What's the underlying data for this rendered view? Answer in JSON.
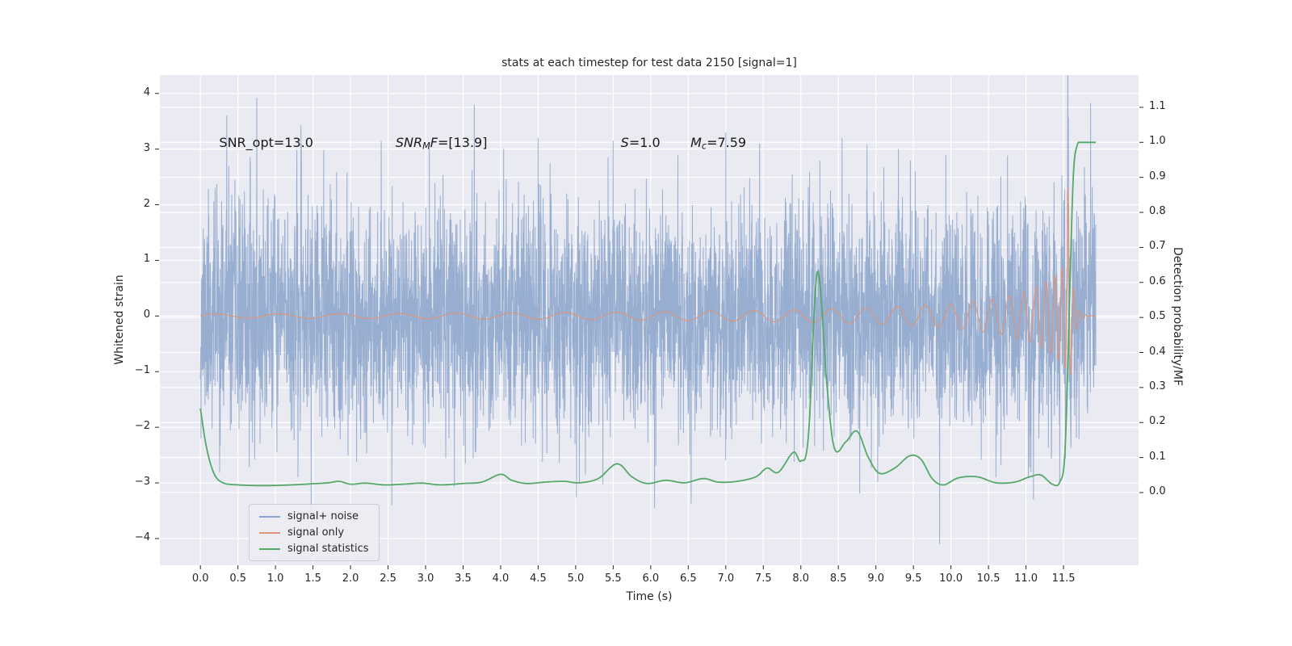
{
  "chart_data": {
    "type": "line",
    "title": "stats at each timestep for test data 2150 [signal=1]",
    "xlabel": "Time (s)",
    "ylabel_left": "Whitened strain",
    "ylabel_right": "Detection probability/MF",
    "xlim": [
      -0.54,
      12.5
    ],
    "ylim_left": [
      -4.48,
      4.33
    ],
    "ylim_right": [
      -0.2075,
      1.192
    ],
    "axes_bg": "#eaeaf2",
    "figure_bg": "#ffffff",
    "grid_color": "#ffffff",
    "tick_color": "#262626",
    "x_ticks": [
      {
        "v": 0.0,
        "label": "0.0"
      },
      {
        "v": 0.5,
        "label": "0.5"
      },
      {
        "v": 1.0,
        "label": "1.0"
      },
      {
        "v": 1.5,
        "label": "1.5"
      },
      {
        "v": 2.0,
        "label": "2.0"
      },
      {
        "v": 2.5,
        "label": "2.5"
      },
      {
        "v": 3.0,
        "label": "3.0"
      },
      {
        "v": 3.5,
        "label": "3.5"
      },
      {
        "v": 4.0,
        "label": "4.0"
      },
      {
        "v": 4.5,
        "label": "4.5"
      },
      {
        "v": 5.0,
        "label": "5.0"
      },
      {
        "v": 5.5,
        "label": "5.5"
      },
      {
        "v": 6.0,
        "label": "6.0"
      },
      {
        "v": 6.5,
        "label": "6.5"
      },
      {
        "v": 7.0,
        "label": "7.0"
      },
      {
        "v": 7.5,
        "label": "7.5"
      },
      {
        "v": 8.0,
        "label": "8.0"
      },
      {
        "v": 8.5,
        "label": "8.5"
      },
      {
        "v": 9.0,
        "label": "9.0"
      },
      {
        "v": 9.5,
        "label": "9.5"
      },
      {
        "v": 10.0,
        "label": "10.0"
      },
      {
        "v": 10.5,
        "label": "10.5"
      },
      {
        "v": 11.0,
        "label": "11.0"
      },
      {
        "v": 11.5,
        "label": "11.5"
      }
    ],
    "y_ticks_left": [
      {
        "v": -4,
        "label": "−4"
      },
      {
        "v": -3,
        "label": "−3"
      },
      {
        "v": -2,
        "label": "−2"
      },
      {
        "v": -1,
        "label": "−1"
      },
      {
        "v": 0,
        "label": "0"
      },
      {
        "v": 1,
        "label": "1"
      },
      {
        "v": 2,
        "label": "2"
      },
      {
        "v": 3,
        "label": "3"
      },
      {
        "v": 4,
        "label": "4"
      }
    ],
    "y_ticks_right": [
      {
        "v": 0.0,
        "label": "0.0"
      },
      {
        "v": 0.1,
        "label": "0.1"
      },
      {
        "v": 0.2,
        "label": "0.2"
      },
      {
        "v": 0.3,
        "label": "0.3"
      },
      {
        "v": 0.4,
        "label": "0.4"
      },
      {
        "v": 0.5,
        "label": "0.5"
      },
      {
        "v": 0.6,
        "label": "0.6"
      },
      {
        "v": 0.7,
        "label": "0.7"
      },
      {
        "v": 0.8,
        "label": "0.8"
      },
      {
        "v": 0.9,
        "label": "0.9"
      },
      {
        "v": 1.0,
        "label": "1.0"
      },
      {
        "v": 1.1,
        "label": "1.1"
      }
    ],
    "annotations": [
      {
        "x": 0.25,
        "y": 3.1,
        "segments": [
          {
            "t": "SNR_opt=13.0"
          }
        ]
      },
      {
        "x": 2.6,
        "y": 3.1,
        "segments": [
          {
            "t": "SNR",
            "i": 1
          },
          {
            "t": "M",
            "i": 1,
            "sub": 1
          },
          {
            "t": "F",
            "i": 1
          },
          {
            "t": "=[13.9]"
          }
        ]
      },
      {
        "x": 5.6,
        "y": 3.1,
        "segments": [
          {
            "t": "S",
            "i": 1
          },
          {
            "t": "=1.0"
          }
        ]
      },
      {
        "x": 6.53,
        "y": 3.1,
        "segments": [
          {
            "t": "M",
            "i": 1
          },
          {
            "t": "c",
            "i": 1,
            "sub": 1
          },
          {
            "t": "=7.59"
          }
        ]
      }
    ],
    "legend": {
      "items": [
        {
          "label": "signal+ noise",
          "series": "signal_plus_noise"
        },
        {
          "label": "signal only",
          "series": "signal_only"
        },
        {
          "label": "signal statistics",
          "series": "signal_statistics"
        }
      ]
    },
    "series": {
      "signal_plus_noise": {
        "color": "#8ba5cc",
        "opacity": 0.88,
        "seed": 11,
        "std": 1.0,
        "desc": "whitened gaussian noise plus injected chirp signal",
        "spikes": [
          [
            0.35,
            3.6
          ],
          [
            0.75,
            3.92
          ],
          [
            1.3,
            -2.9
          ],
          [
            2.55,
            -3.4
          ],
          [
            3.05,
            3.1
          ],
          [
            3.65,
            3.8
          ],
          [
            4.5,
            3.2
          ],
          [
            5.05,
            -3.0
          ],
          [
            5.5,
            3.15
          ],
          [
            6.05,
            -3.45
          ],
          [
            7.0,
            3.3
          ],
          [
            7.45,
            3.1
          ],
          [
            8.55,
            3.2
          ],
          [
            9.3,
            3.0
          ],
          [
            9.85,
            -4.1
          ],
          [
            10.6,
            -2.9
          ],
          [
            11.1,
            -3.3
          ]
        ]
      },
      "signal_only": {
        "color": "#dd9478",
        "opacity": 0.9,
        "n": 4800,
        "t_start": 0.0,
        "t_end": 11.93,
        "t_merge": 11.55,
        "amp_scale": 0.45,
        "amp_soft": 0.45,
        "freq_base": 0.8,
        "freq_scale": 4.5,
        "freq_soft": 0.35,
        "ring_amp": 2.7,
        "ring_tau": 0.05,
        "ring_freq": 13
      },
      "signal_statistics": {
        "color": "#55a868",
        "width": 1.8,
        "keypoints": [
          [
            0.0,
            0.24
          ],
          [
            0.08,
            0.13
          ],
          [
            0.18,
            0.055
          ],
          [
            0.3,
            0.028
          ],
          [
            0.5,
            0.022
          ],
          [
            0.8,
            0.02
          ],
          [
            1.1,
            0.021
          ],
          [
            1.4,
            0.024
          ],
          [
            1.7,
            0.028
          ],
          [
            1.85,
            0.032
          ],
          [
            2.0,
            0.024
          ],
          [
            2.2,
            0.027
          ],
          [
            2.45,
            0.022
          ],
          [
            2.7,
            0.024
          ],
          [
            2.95,
            0.027
          ],
          [
            3.2,
            0.022
          ],
          [
            3.5,
            0.026
          ],
          [
            3.75,
            0.03
          ],
          [
            4.0,
            0.052
          ],
          [
            4.15,
            0.035
          ],
          [
            4.35,
            0.026
          ],
          [
            4.6,
            0.03
          ],
          [
            4.85,
            0.032
          ],
          [
            5.05,
            0.028
          ],
          [
            5.3,
            0.04
          ],
          [
            5.55,
            0.082
          ],
          [
            5.75,
            0.045
          ],
          [
            5.95,
            0.026
          ],
          [
            6.2,
            0.035
          ],
          [
            6.45,
            0.028
          ],
          [
            6.7,
            0.04
          ],
          [
            6.9,
            0.03
          ],
          [
            7.15,
            0.032
          ],
          [
            7.4,
            0.045
          ],
          [
            7.55,
            0.07
          ],
          [
            7.7,
            0.058
          ],
          [
            7.9,
            0.115
          ],
          [
            8.0,
            0.09
          ],
          [
            8.1,
            0.16
          ],
          [
            8.22,
            0.63
          ],
          [
            8.35,
            0.3
          ],
          [
            8.45,
            0.125
          ],
          [
            8.6,
            0.145
          ],
          [
            8.75,
            0.175
          ],
          [
            8.9,
            0.1
          ],
          [
            9.05,
            0.055
          ],
          [
            9.25,
            0.07
          ],
          [
            9.45,
            0.105
          ],
          [
            9.6,
            0.095
          ],
          [
            9.75,
            0.04
          ],
          [
            9.9,
            0.022
          ],
          [
            10.1,
            0.042
          ],
          [
            10.35,
            0.045
          ],
          [
            10.6,
            0.028
          ],
          [
            10.85,
            0.03
          ],
          [
            11.05,
            0.045
          ],
          [
            11.2,
            0.05
          ],
          [
            11.35,
            0.024
          ],
          [
            11.45,
            0.03
          ],
          [
            11.52,
            0.12
          ],
          [
            11.58,
            0.55
          ],
          [
            11.63,
            0.9
          ],
          [
            11.68,
            0.99
          ],
          [
            11.75,
            1.0
          ],
          [
            11.93,
            1.0
          ]
        ]
      }
    }
  }
}
